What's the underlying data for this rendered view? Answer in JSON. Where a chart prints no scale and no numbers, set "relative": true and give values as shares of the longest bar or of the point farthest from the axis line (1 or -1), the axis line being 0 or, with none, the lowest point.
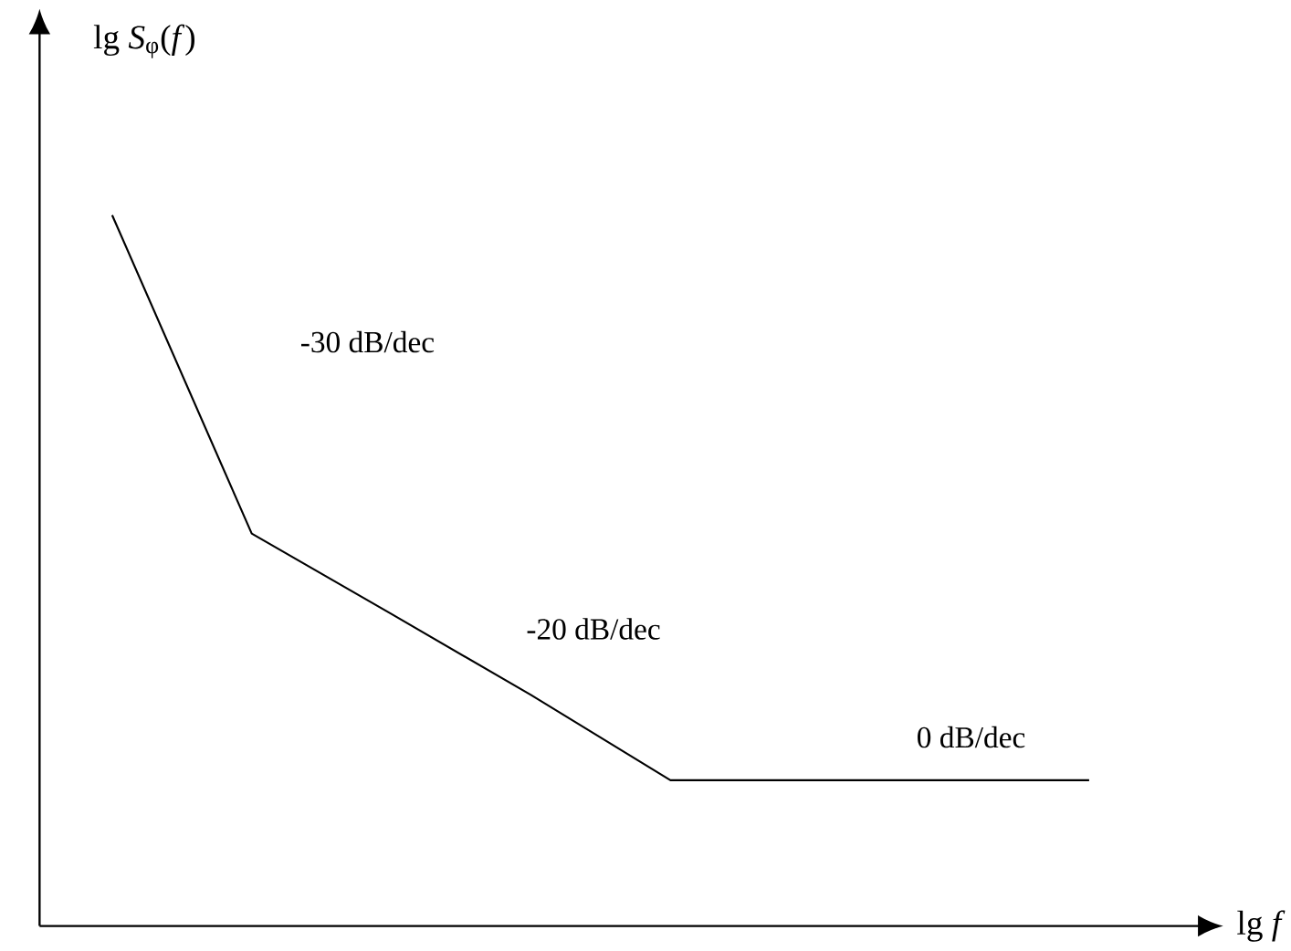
{
  "chart_data": {
    "type": "line",
    "relative": true,
    "xlabel": "lg *f*",
    "ylabel": "lg *S*$_{φ}$(*f*)",
    "categories": [
      null,
      null,
      null,
      null,
      null,
      null,
      null,
      null
    ],
    "series": [
      {
        "color": "#000000",
        "values": [
          1,
          0.552,
          0.439,
          0.325,
          0.205,
          0.205,
          0.205,
          0.205
        ]
      }
    ],
    "annotations": [
      "-30 dB/dec",
      "-20 dB/dec",
      "0 dB/dec"
    ],
    "tick_labels": false,
    "marker": "none",
    "line_style": "solid"
  }
}
